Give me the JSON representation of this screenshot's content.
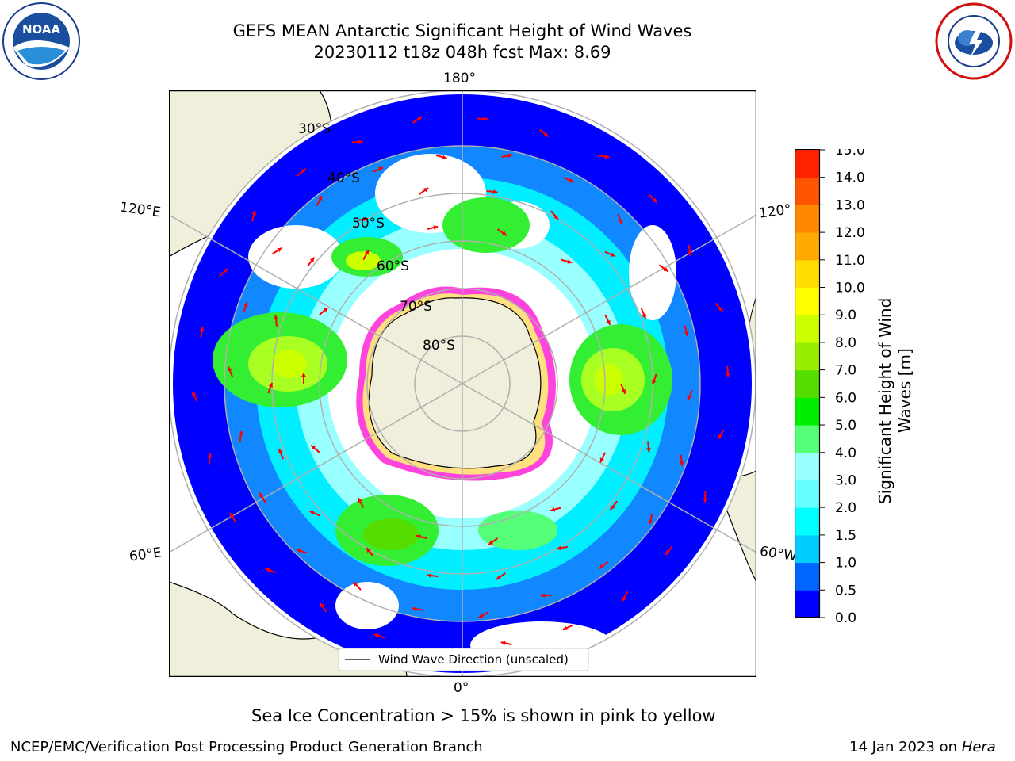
{
  "header": {
    "title_line1": "GEFS MEAN Antarctic Significant Height of Wind Waves",
    "title_line2": "20230112 t18z 048h fcst   Max: 8.69"
  },
  "logos": {
    "left": "NOAA",
    "right": "NATIONAL WEATHER SERVICE"
  },
  "map": {
    "projection": "south-polar-stereographic",
    "lon_labels": {
      "top": "180°",
      "bottom": "0°",
      "left_upper": "120°E",
      "left_lower": "60°E",
      "right_upper": "120°",
      "right_lower": "60°W"
    },
    "lat_labels": [
      "30°S",
      "40°S",
      "50°S",
      "60°S",
      "70°S",
      "80°S"
    ],
    "colors": {
      "land": "#efefdb",
      "ocean_low": "#ffffff",
      "ice": "#ff44dd",
      "arrow": "#ff0000",
      "grid": "#b0b0b0"
    },
    "legend": {
      "label": "Wind Wave Direction (unscaled)"
    }
  },
  "colorbar": {
    "label": "Significant Height of Wind Waves [m]",
    "label_line1": "Significant Height of Wind",
    "label_line2": "Waves [m]",
    "ticks": [
      "0.0",
      "0.5",
      "1.0",
      "1.5",
      "2.0",
      "3.0",
      "4.0",
      "5.0",
      "6.0",
      "7.0",
      "8.0",
      "9.0",
      "10.0",
      "11.0",
      "12.0",
      "13.0",
      "14.0",
      "15.0"
    ],
    "colors": [
      "#0000ff",
      "#0066ff",
      "#00ccff",
      "#00ffff",
      "#66ffff",
      "#99ffff",
      "#55ff77",
      "#00ee00",
      "#55dd00",
      "#99ee00",
      "#ccff00",
      "#ffff00",
      "#ffdd00",
      "#ffaa00",
      "#ff8800",
      "#ff5500",
      "#ff2200"
    ]
  },
  "caption": "Sea Ice Concentration > 15% is shown in pink to yellow",
  "footer": {
    "left": "NCEP/EMC/Verification Post Processing Product Generation Branch",
    "right_date": "14 Jan 2023 on ",
    "right_machine": "Hera"
  }
}
